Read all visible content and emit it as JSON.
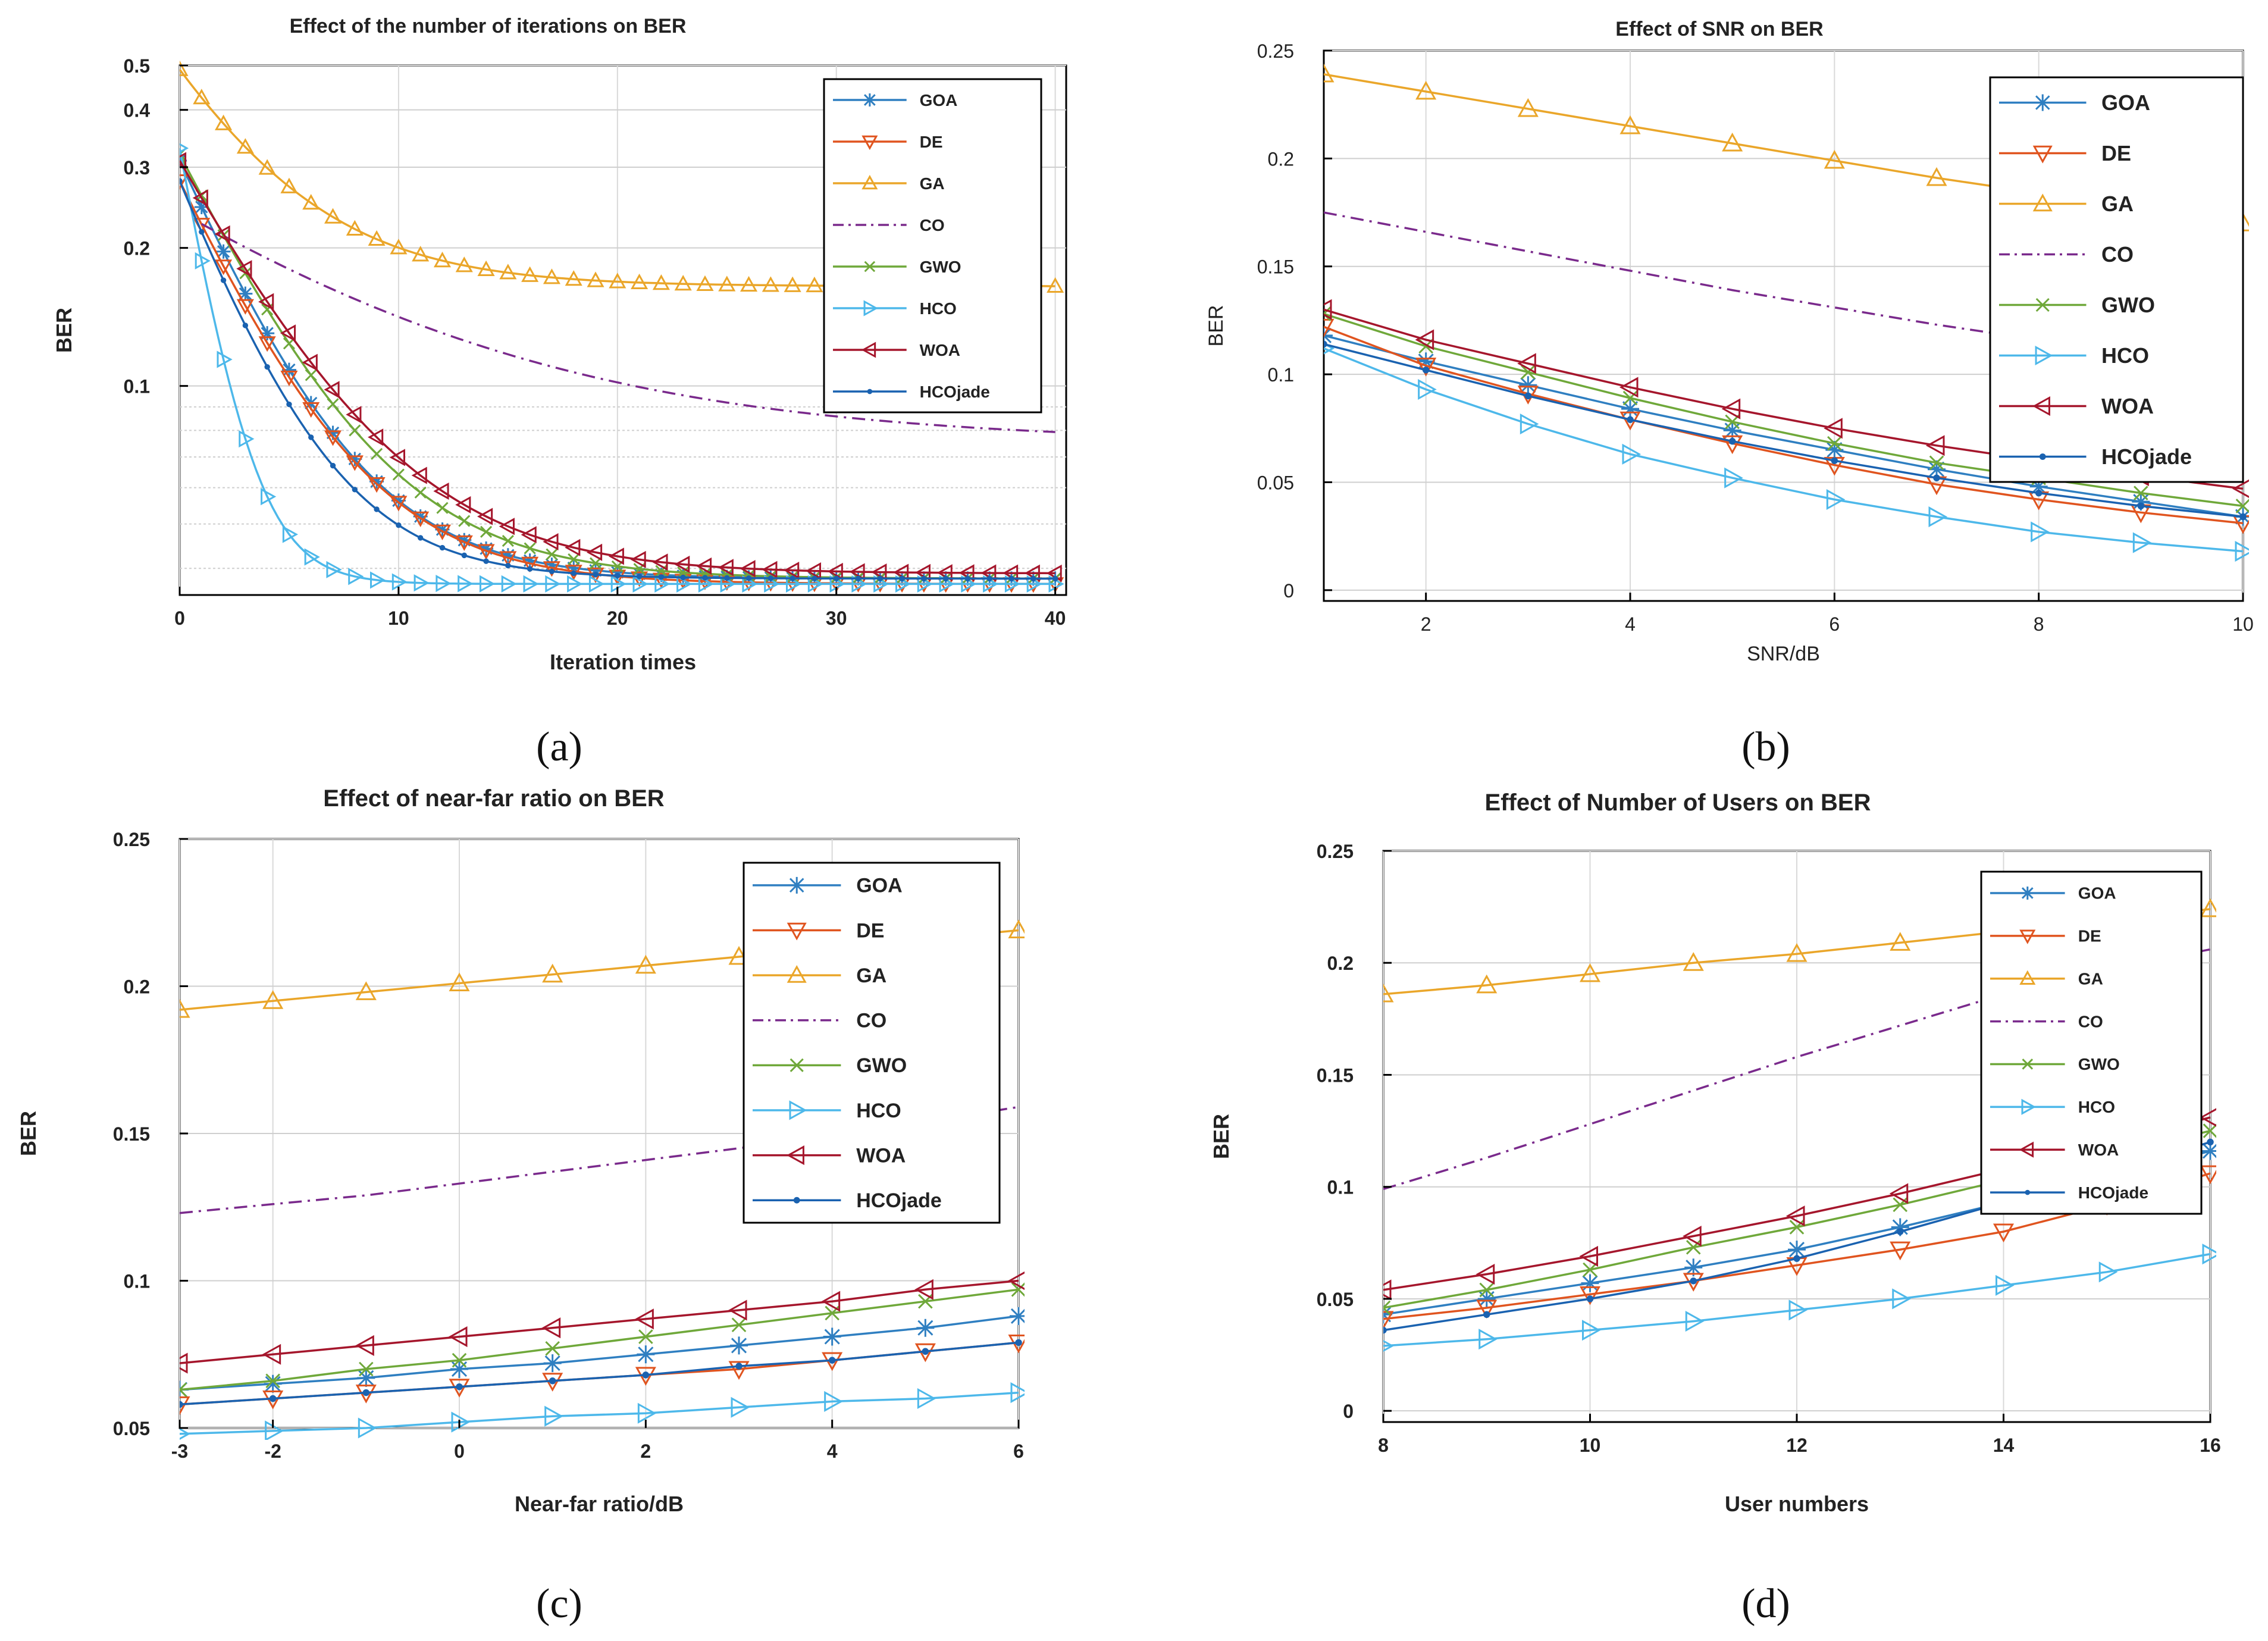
{
  "panel_captions": [
    "(a)",
    "(b)",
    "(c)",
    "(d)"
  ],
  "colors": {
    "GOA": "#2f7fc1",
    "DE": "#e0541f",
    "GA": "#eaa62a",
    "CO": "#7a2a8c",
    "GWO": "#6fa83a",
    "HCO": "#4db8ea",
    "WOA": "#a5162c",
    "HCOjade": "#1a62b0"
  },
  "chart_data": [
    {
      "type": "line",
      "id": "a",
      "title": "Effect of the number of iterations on BER",
      "xlabel": "Iteration times",
      "ylabel": "BER",
      "yscale": "log",
      "xlim": [
        0,
        40.5
      ],
      "ylim": [
        0.035,
        0.5
      ],
      "xticks": [
        0,
        10,
        20,
        30,
        40
      ],
      "yticks": [
        0.1,
        0.2,
        0.3,
        0.4,
        0.5
      ],
      "ytick_labels": [
        "0.1",
        "0.2",
        "0.3",
        "0.4",
        "0.5"
      ],
      "grid": true,
      "legend_position": "top-right",
      "series": [
        {
          "name": "GOA",
          "marker": "star",
          "params": {
            "y0": 0.31,
            "yinf": 0.038,
            "tau": 3.7
          },
          "x_start": 0,
          "x_end": 40,
          "marker_step": 1
        },
        {
          "name": "DE",
          "marker": "triangle-down",
          "params": {
            "y0": 0.28,
            "yinf": 0.037,
            "tau": 3.9
          },
          "x_start": 0,
          "x_end": 40,
          "marker_step": 1
        },
        {
          "name": "GA",
          "marker": "triangle-up",
          "params": {
            "y0": 0.49,
            "yinf": 0.165,
            "tau": 4.5
          },
          "x_start": 0,
          "x_end": 40,
          "marker_step": 1
        },
        {
          "name": "CO",
          "marker": "none",
          "dash": true,
          "params": {
            "y0": 0.24,
            "yinf": 0.075,
            "tau": 11.0
          },
          "x_start": 1,
          "x_end": 40
        },
        {
          "name": "GWO",
          "marker": "x",
          "params": {
            "y0": 0.32,
            "yinf": 0.038,
            "tau": 4.2
          },
          "x_start": 0,
          "x_end": 40,
          "marker_step": 1
        },
        {
          "name": "HCO",
          "marker": "triangle-right",
          "params": {
            "y0": 0.33,
            "yinf": 0.037,
            "tau": 1.5
          },
          "x_start": 0,
          "x_end": 40,
          "marker_step": 1
        },
        {
          "name": "WOA",
          "marker": "triangle-left",
          "params": {
            "y0": 0.31,
            "yinf": 0.039,
            "tau": 4.6
          },
          "x_start": 0,
          "x_end": 40,
          "marker_step": 1
        },
        {
          "name": "HCOjade",
          "marker": "dot",
          "params": {
            "y0": 0.28,
            "yinf": 0.038,
            "tau": 3.3
          },
          "x_start": 0,
          "x_end": 40,
          "marker_step": 1
        }
      ]
    },
    {
      "type": "line",
      "id": "b",
      "title": "Effect of SNR on BER",
      "xlabel": "SNR/dB",
      "ylabel": "BER",
      "xlim": [
        1,
        10
      ],
      "ylim": [
        -0.005,
        0.25
      ],
      "xticks": [
        2,
        4,
        6,
        8,
        10
      ],
      "yticks": [
        0,
        0.05,
        0.1,
        0.15,
        0.2,
        0.25
      ],
      "ytick_labels": [
        "0",
        "0.05",
        "0.1",
        "0.15",
        "0.2",
        "0.25"
      ],
      "grid": true,
      "legend_position": "top-right",
      "x": [
        1,
        2,
        3,
        4,
        5,
        6,
        7,
        8,
        9,
        10
      ],
      "series": [
        {
          "name": "GOA",
          "marker": "star",
          "values": [
            0.118,
            0.106,
            0.095,
            0.084,
            0.074,
            0.065,
            0.056,
            0.048,
            0.041,
            0.034
          ]
        },
        {
          "name": "DE",
          "marker": "triangle-down",
          "values": [
            0.122,
            0.104,
            0.091,
            0.079,
            0.068,
            0.058,
            0.049,
            0.042,
            0.036,
            0.031
          ]
        },
        {
          "name": "GA",
          "marker": "triangle-up",
          "values": [
            0.239,
            0.231,
            0.223,
            0.215,
            0.207,
            0.199,
            0.191,
            0.184,
            0.177,
            0.17
          ]
        },
        {
          "name": "CO",
          "marker": "none",
          "dash": true,
          "values": [
            0.175,
            0.166,
            0.157,
            0.148,
            0.139,
            0.131,
            0.123,
            0.116,
            0.109,
            0.102
          ]
        },
        {
          "name": "GWO",
          "marker": "x",
          "values": [
            0.128,
            0.113,
            0.101,
            0.089,
            0.078,
            0.068,
            0.059,
            0.052,
            0.045,
            0.039
          ]
        },
        {
          "name": "HCO",
          "marker": "triangle-right",
          "values": [
            0.112,
            0.093,
            0.077,
            0.063,
            0.052,
            0.042,
            0.034,
            0.027,
            0.022,
            0.018
          ]
        },
        {
          "name": "WOA",
          "marker": "triangle-left",
          "values": [
            0.13,
            0.116,
            0.105,
            0.094,
            0.084,
            0.075,
            0.067,
            0.06,
            0.053,
            0.047
          ]
        },
        {
          "name": "HCOjade",
          "marker": "dot",
          "values": [
            0.114,
            0.102,
            0.09,
            0.079,
            0.069,
            0.06,
            0.052,
            0.045,
            0.039,
            0.034
          ]
        }
      ]
    },
    {
      "type": "line",
      "id": "c",
      "title": "Effect of near-far ratio on BER",
      "xlabel": "Near-far ratio/dB",
      "ylabel": "BER",
      "xlim": [
        -3,
        6
      ],
      "ylim": [
        0.05,
        0.25
      ],
      "xticks": [
        -3,
        -2,
        0,
        2,
        4,
        6
      ],
      "yticks": [
        0.05,
        0.1,
        0.15,
        0.2,
        0.25
      ],
      "ytick_labels": [
        "0.05",
        "0.1",
        "0.15",
        "0.2",
        "0.25"
      ],
      "grid": true,
      "legend_position": "top-right",
      "x": [
        -3,
        -2,
        -1,
        0,
        1,
        2,
        3,
        4,
        5,
        6
      ],
      "series": [
        {
          "name": "GOA",
          "marker": "star",
          "values": [
            0.063,
            0.065,
            0.067,
            0.07,
            0.072,
            0.075,
            0.078,
            0.081,
            0.084,
            0.088
          ]
        },
        {
          "name": "DE",
          "marker": "triangle-down",
          "values": [
            0.058,
            0.06,
            0.062,
            0.064,
            0.066,
            0.068,
            0.07,
            0.073,
            0.076,
            0.079
          ]
        },
        {
          "name": "GA",
          "marker": "triangle-up",
          "values": [
            0.192,
            0.195,
            0.198,
            0.201,
            0.204,
            0.207,
            0.21,
            0.213,
            0.216,
            0.219
          ]
        },
        {
          "name": "CO",
          "marker": "none",
          "dash": true,
          "values": [
            0.123,
            0.126,
            0.129,
            0.133,
            0.137,
            0.141,
            0.145,
            0.149,
            0.154,
            0.159
          ]
        },
        {
          "name": "GWO",
          "marker": "x",
          "values": [
            0.063,
            0.066,
            0.07,
            0.073,
            0.077,
            0.081,
            0.085,
            0.089,
            0.093,
            0.097
          ]
        },
        {
          "name": "HCO",
          "marker": "triangle-right",
          "values": [
            0.048,
            0.049,
            0.05,
            0.052,
            0.054,
            0.055,
            0.057,
            0.059,
            0.06,
            0.062
          ]
        },
        {
          "name": "WOA",
          "marker": "triangle-left",
          "values": [
            0.072,
            0.075,
            0.078,
            0.081,
            0.084,
            0.087,
            0.09,
            0.093,
            0.097,
            0.1
          ]
        },
        {
          "name": "HCOjade",
          "marker": "dot",
          "values": [
            0.058,
            0.06,
            0.062,
            0.064,
            0.066,
            0.068,
            0.071,
            0.073,
            0.076,
            0.079
          ]
        }
      ]
    },
    {
      "type": "line",
      "id": "d",
      "title": "Effect of Number of Users on BER",
      "xlabel": "User numbers",
      "ylabel": "BER",
      "xlim": [
        8,
        16
      ],
      "ylim": [
        -0.005,
        0.25
      ],
      "xticks": [
        8,
        10,
        12,
        14,
        16
      ],
      "yticks": [
        0,
        0.05,
        0.1,
        0.15,
        0.2,
        0.25
      ],
      "ytick_labels": [
        "0",
        "0.05",
        "0.1",
        "0.15",
        "0.2",
        "0.25"
      ],
      "grid": true,
      "legend_position": "top-right",
      "x": [
        8,
        9,
        10,
        11,
        12,
        13,
        14,
        15,
        16
      ],
      "series": [
        {
          "name": "GOA",
          "marker": "star",
          "values": [
            0.043,
            0.05,
            0.057,
            0.064,
            0.072,
            0.082,
            0.093,
            0.104,
            0.116
          ]
        },
        {
          "name": "DE",
          "marker": "triangle-down",
          "values": [
            0.041,
            0.046,
            0.052,
            0.058,
            0.065,
            0.072,
            0.08,
            0.092,
            0.106
          ]
        },
        {
          "name": "GA",
          "marker": "triangle-up",
          "values": [
            0.186,
            0.19,
            0.195,
            0.2,
            0.204,
            0.209,
            0.214,
            0.219,
            0.224
          ]
        },
        {
          "name": "CO",
          "marker": "none",
          "dash": true,
          "values": [
            0.099,
            0.113,
            0.128,
            0.143,
            0.158,
            0.172,
            0.186,
            0.197,
            0.206
          ]
        },
        {
          "name": "GWO",
          "marker": "x",
          "values": [
            0.046,
            0.054,
            0.063,
            0.073,
            0.082,
            0.092,
            0.103,
            0.114,
            0.125
          ]
        },
        {
          "name": "HCO",
          "marker": "triangle-right",
          "values": [
            0.029,
            0.032,
            0.036,
            0.04,
            0.045,
            0.05,
            0.056,
            0.062,
            0.07
          ]
        },
        {
          "name": "WOA",
          "marker": "triangle-left",
          "values": [
            0.054,
            0.061,
            0.069,
            0.078,
            0.087,
            0.097,
            0.108,
            0.119,
            0.131
          ]
        },
        {
          "name": "HCOjade",
          "marker": "dot",
          "values": [
            0.036,
            0.043,
            0.05,
            0.058,
            0.068,
            0.08,
            0.093,
            0.106,
            0.12
          ]
        }
      ]
    }
  ]
}
